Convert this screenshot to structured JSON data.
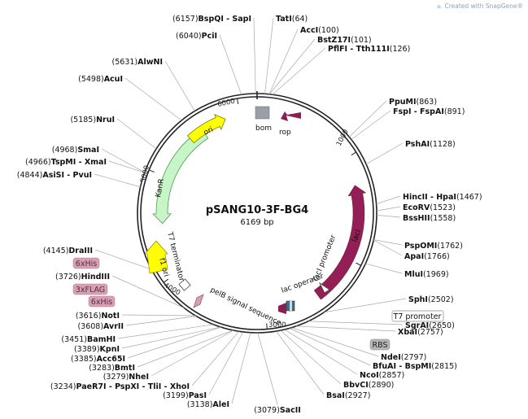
{
  "credit": "Created with SnapGene®",
  "plasmid": {
    "name": "pSANG10-3F-BG4",
    "length": "6169 bp",
    "total": 6169
  },
  "ticks": [
    "1000",
    "2000",
    "3000",
    "4000",
    "5000",
    "6000"
  ],
  "features": [
    {
      "id": "bom",
      "label": "bom"
    },
    {
      "id": "rop",
      "label": "rop"
    },
    {
      "id": "laci",
      "label": "lacI"
    },
    {
      "id": "laci-promoter",
      "label": "lacI promoter"
    },
    {
      "id": "lac-operator",
      "label": "lac operator"
    },
    {
      "id": "pelb",
      "label": "pelB signal sequence"
    },
    {
      "id": "f1ori",
      "label": "f1 ori"
    },
    {
      "id": "t7term",
      "label": "T7 terminator"
    },
    {
      "id": "kanr",
      "label": "KanR"
    },
    {
      "id": "ori",
      "label": "ori"
    }
  ],
  "boxes": [
    {
      "id": "6xhis-top",
      "label": "6xHis"
    },
    {
      "id": "3xflag",
      "label": "3xFLAG"
    },
    {
      "id": "6xhis-bottom",
      "label": "6xHis"
    },
    {
      "id": "t7-promoter",
      "label": "T7 promoter"
    },
    {
      "id": "rbs",
      "label": "RBS"
    }
  ],
  "sites": [
    {
      "id": "bspqi",
      "pos": "(6157)",
      "name": "BspQI - SapI"
    },
    {
      "id": "tati",
      "pos": "(64)",
      "name": "TatI"
    },
    {
      "id": "acci",
      "pos": "(100)",
      "name": "AccI"
    },
    {
      "id": "bstz17i",
      "pos": "(101)",
      "name": "BstZ17I"
    },
    {
      "id": "pflfi",
      "pos": "(126)",
      "name": "PflFI - Tth111I"
    },
    {
      "id": "pcii",
      "pos": "(6040)",
      "name": "PciI"
    },
    {
      "id": "alwni",
      "pos": "(5631)",
      "name": "AlwNI"
    },
    {
      "id": "acui",
      "pos": "(5498)",
      "name": "AcuI"
    },
    {
      "id": "nrui",
      "pos": "(5185)",
      "name": "NruI"
    },
    {
      "id": "smai",
      "pos": "(4968)",
      "name": "SmaI"
    },
    {
      "id": "tspmi",
      "pos": "(4966)",
      "name": "TspMI - XmaI"
    },
    {
      "id": "asisi",
      "pos": "(4844)",
      "name": "AsiSI - PvuI"
    },
    {
      "id": "draiii",
      "pos": "(4145)",
      "name": "DraIII"
    },
    {
      "id": "hindiii",
      "pos": "(3726)",
      "name": "HindIII"
    },
    {
      "id": "noti",
      "pos": "(3616)",
      "name": "NotI"
    },
    {
      "id": "avrii",
      "pos": "(3608)",
      "name": "AvrII"
    },
    {
      "id": "bamhi",
      "pos": "(3451)",
      "name": "BamHI"
    },
    {
      "id": "kpni",
      "pos": "(3389)",
      "name": "KpnI"
    },
    {
      "id": "acc65i",
      "pos": "(3385)",
      "name": "Acc65I"
    },
    {
      "id": "bmti",
      "pos": "(3283)",
      "name": "BmtI"
    },
    {
      "id": "nhei",
      "pos": "(3279)",
      "name": "NheI"
    },
    {
      "id": "paer7i",
      "pos": "(3234)",
      "name": "PaeR7I - PspXI - TliI - XhoI"
    },
    {
      "id": "pasi",
      "pos": "(3199)",
      "name": "PasI"
    },
    {
      "id": "alei",
      "pos": "(3138)",
      "name": "AleI"
    },
    {
      "id": "sacii",
      "pos": "(3079)",
      "name": "SacII"
    },
    {
      "id": "ppumi",
      "pos": "(863)",
      "name": "PpuMI"
    },
    {
      "id": "fspi",
      "pos": "(891)",
      "name": "FspI - FspAI"
    },
    {
      "id": "pshai",
      "pos": "(1128)",
      "name": "PshAI"
    },
    {
      "id": "hincii",
      "pos": "(1467)",
      "name": "HincII - HpaI"
    },
    {
      "id": "ecorv",
      "pos": "(1523)",
      "name": "EcoRV"
    },
    {
      "id": "bsshii",
      "pos": "(1558)",
      "name": "BssHII"
    },
    {
      "id": "pspomi",
      "pos": "(1762)",
      "name": "PspOMI"
    },
    {
      "id": "apai",
      "pos": "(1766)",
      "name": "ApaI"
    },
    {
      "id": "mlui",
      "pos": "(1969)",
      "name": "MluI"
    },
    {
      "id": "sphi",
      "pos": "(2502)",
      "name": "SphI"
    },
    {
      "id": "sgrai",
      "pos": "(2650)",
      "name": "SgrAI"
    },
    {
      "id": "xbai",
      "pos": "(2757)",
      "name": "XbaI"
    },
    {
      "id": "ndei",
      "pos": "(2797)",
      "name": "NdeI"
    },
    {
      "id": "bfuai",
      "pos": "(2815)",
      "name": "BfuAI - BspMI"
    },
    {
      "id": "ncoi",
      "pos": "(2857)",
      "name": "NcoI"
    },
    {
      "id": "bbvci",
      "pos": "(2890)",
      "name": "BbvCI"
    },
    {
      "id": "bsai",
      "pos": "(2927)",
      "name": "BsaI"
    }
  ]
}
